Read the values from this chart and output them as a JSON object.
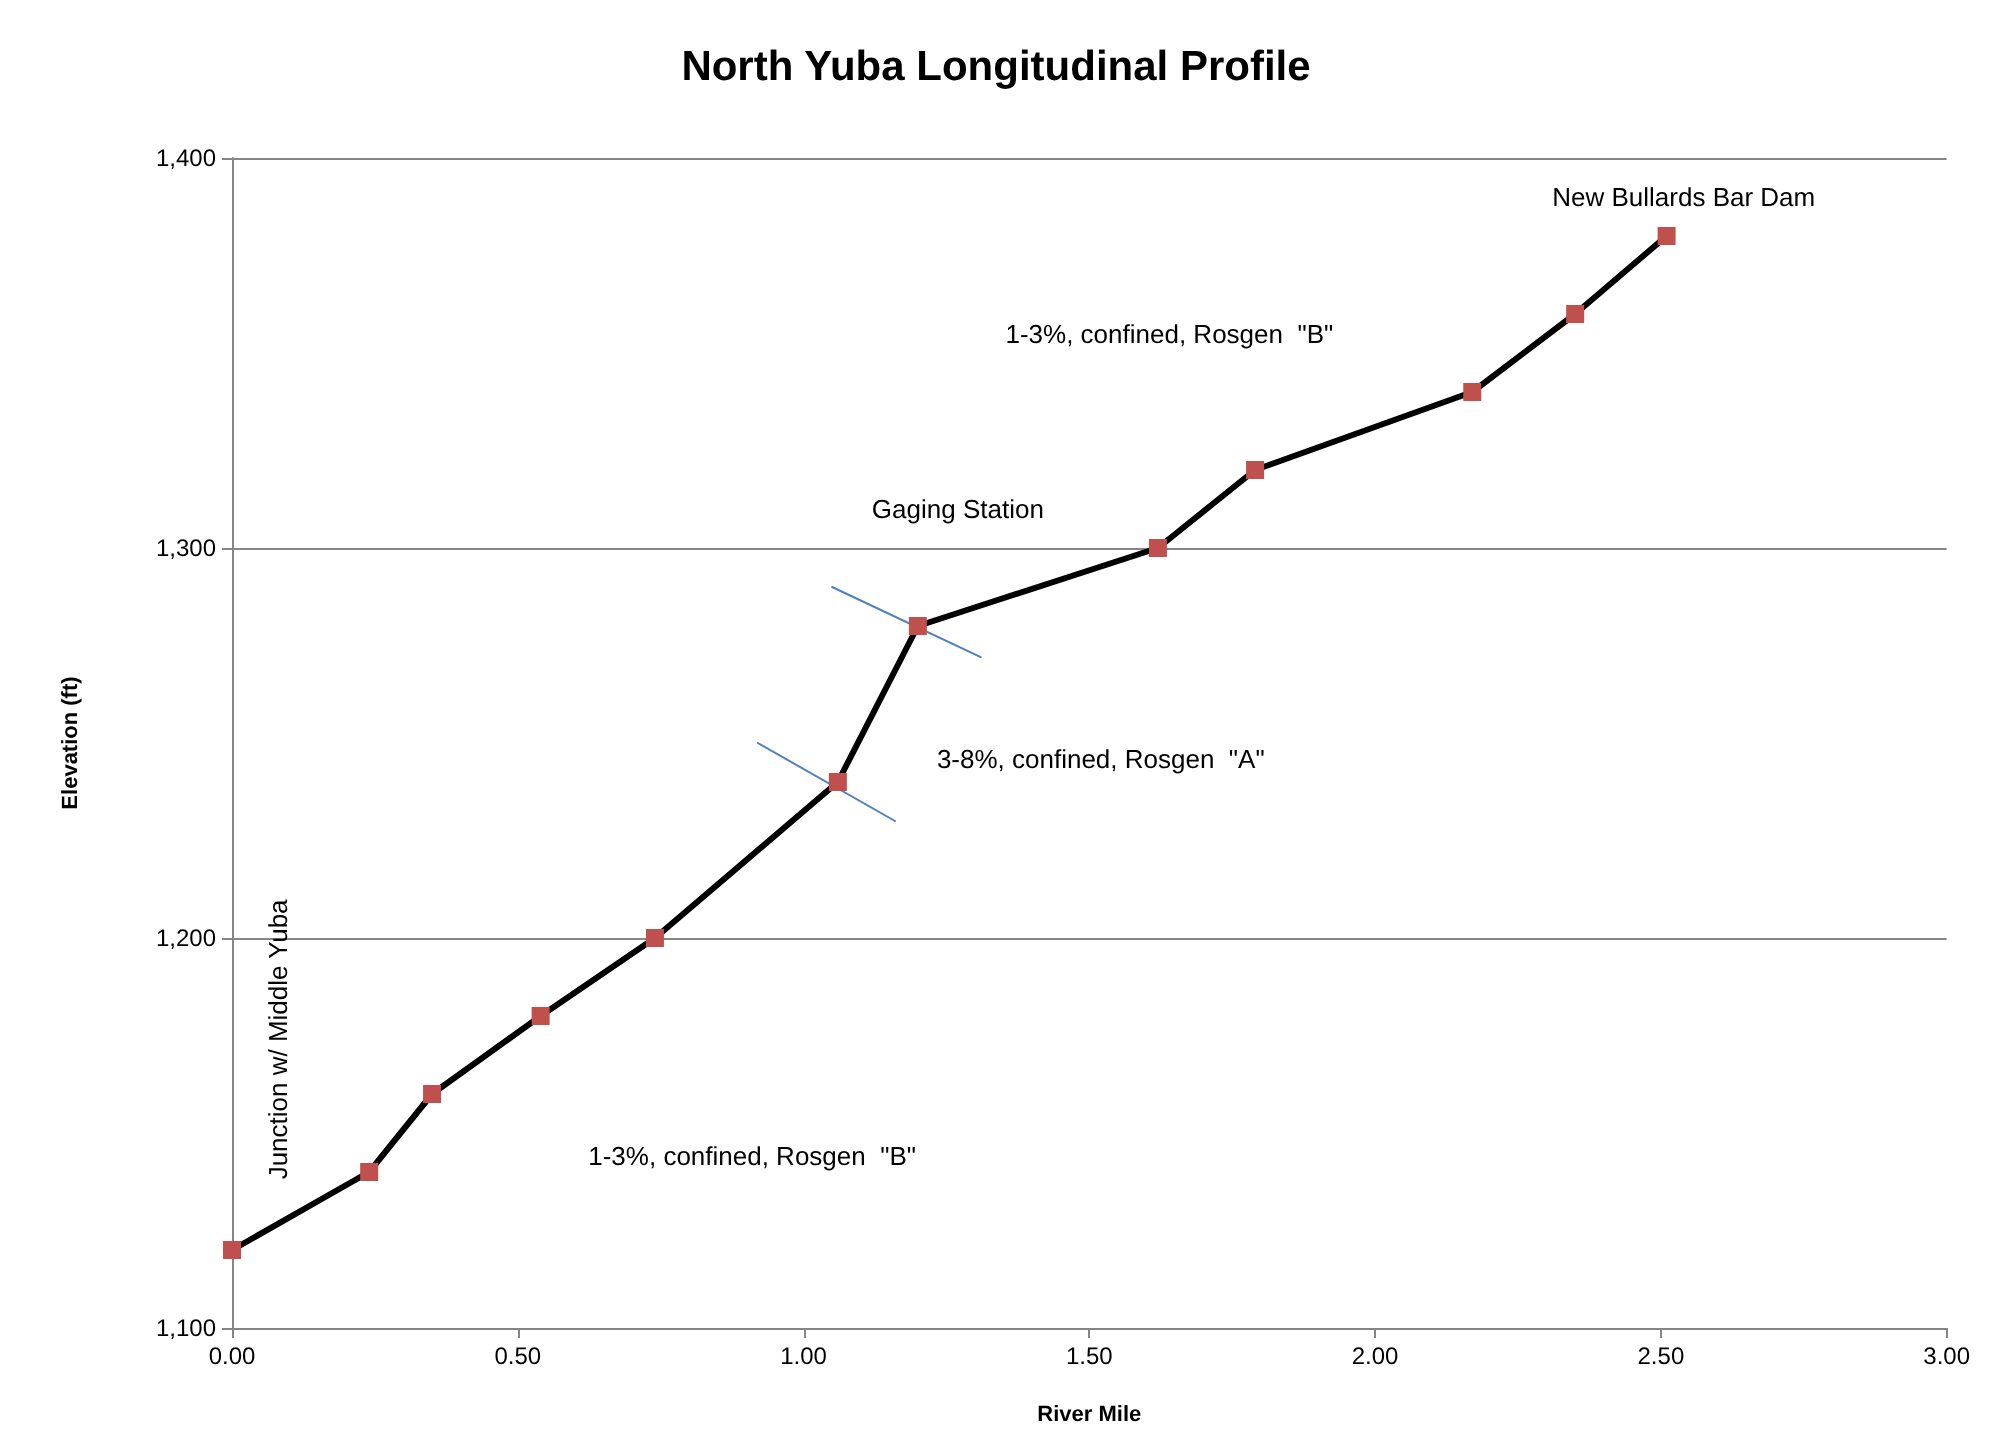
{
  "chart_data": {
    "type": "line",
    "title": "North Yuba Longitudinal Profile",
    "xlabel": "River Mile",
    "ylabel": "Elevation (ft)",
    "x": [
      0,
      0.24,
      0.35,
      0.54,
      0.74,
      1.06,
      1.2,
      1.62,
      1.79,
      2.17,
      2.35,
      2.51
    ],
    "series": [
      {
        "color": "#c0504d",
        "marker": "square",
        "values": [
          1120,
          1140,
          1160,
          1180,
          1200,
          1240,
          1280,
          1300,
          1320,
          1340,
          1360,
          1380
        ]
      },
      {
        "type": "line",
        "color": "#4f81bd",
        "marker": "none",
        "x": [
          0.92,
          1.16
        ],
        "values": [
          1250,
          1230
        ]
      },
      {
        "type": "line",
        "color": "#4f81bd",
        "marker": "none",
        "x": [
          1.05,
          1.31
        ],
        "values": [
          1290,
          1272
        ]
      }
    ],
    "xlim": [
      0,
      3
    ],
    "xticks": [
      {
        "value": 0,
        "label": "0.00"
      },
      {
        "value": 0.5,
        "label": "0.50"
      },
      {
        "value": 1,
        "label": "1.00"
      },
      {
        "value": 1.5,
        "label": "1.50"
      },
      {
        "value": 2,
        "label": "2.00"
      },
      {
        "value": 2.5,
        "label": "2.50"
      },
      {
        "value": 3,
        "label": "3.00"
      }
    ],
    "ylim": [
      1100,
      1400
    ],
    "yticks": [
      {
        "value": 1100,
        "label": "1,100"
      },
      {
        "value": 1200,
        "label": "1,200"
      },
      {
        "value": 1300,
        "label": "1,300"
      },
      {
        "value": 1400,
        "label": "1,400"
      }
    ],
    "grid": "y",
    "annotations": [
      "Junction w/ Middle Yuba",
      "1-3%, confined, Rosgen  \"B\"",
      "3-8%, confined, Rosgen  \"A\"",
      "Gaging Station",
      "1-3%, confined, Rosgen  \"B\"",
      "New Bullards Bar Dam"
    ]
  }
}
